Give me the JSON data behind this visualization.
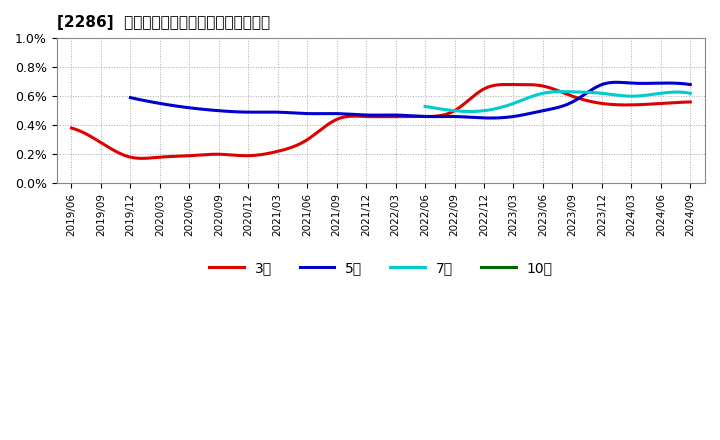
{
  "title": "[2286]  経常利益マージンの標準偏差の推移",
  "ylim": [
    0.0,
    0.01
  ],
  "background_color": "#ffffff",
  "plot_bg_color": "#ffffff",
  "grid_color": "#aaaaaa",
  "x_labels": [
    "2019/06",
    "2019/09",
    "2019/12",
    "2020/03",
    "2020/06",
    "2020/09",
    "2020/12",
    "2021/03",
    "2021/06",
    "2021/09",
    "2021/12",
    "2022/03",
    "2022/06",
    "2022/09",
    "2022/12",
    "2023/03",
    "2023/06",
    "2023/09",
    "2023/12",
    "2024/03",
    "2024/06",
    "2024/09"
  ],
  "series_3y": [
    0.0038,
    0.0028,
    0.0018,
    0.0018,
    0.0019,
    0.002,
    0.0019,
    0.0022,
    0.003,
    0.0044,
    0.0046,
    0.0046,
    0.0046,
    0.005,
    0.0065,
    0.0068,
    0.0067,
    0.006,
    0.0055,
    0.0054,
    0.0055,
    0.0056
  ],
  "series_5y": [
    null,
    null,
    0.0059,
    0.0055,
    0.0052,
    0.005,
    0.0049,
    0.0049,
    0.0048,
    0.0048,
    0.0047,
    0.0047,
    0.0046,
    0.0046,
    0.0045,
    0.0046,
    0.005,
    0.0056,
    0.0068,
    0.0069,
    0.0069,
    0.0068
  ],
  "series_7y": [
    null,
    null,
    null,
    null,
    null,
    null,
    null,
    null,
    null,
    null,
    null,
    null,
    0.0053,
    0.005,
    0.005,
    0.0055,
    0.0062,
    0.0063,
    0.0062,
    0.006,
    0.0062,
    0.0062
  ],
  "series_10y": [
    null,
    null,
    null,
    null,
    null,
    null,
    null,
    null,
    null,
    null,
    null,
    null,
    null,
    null,
    null,
    null,
    null,
    null,
    null,
    null,
    null,
    null
  ],
  "color_3y": "#dd0000",
  "color_5y": "#0000cc",
  "color_7y": "#00cccc",
  "color_10y": "#006600",
  "legend_labels": [
    "3年",
    "5年",
    "7年",
    "10年"
  ],
  "ytick_labels": [
    "0.0%",
    "0.2%",
    "0.4%",
    "0.6%",
    "0.8%",
    "1.0%"
  ],
  "ytick_values": [
    0.0,
    0.002,
    0.004,
    0.006,
    0.008,
    0.01
  ]
}
